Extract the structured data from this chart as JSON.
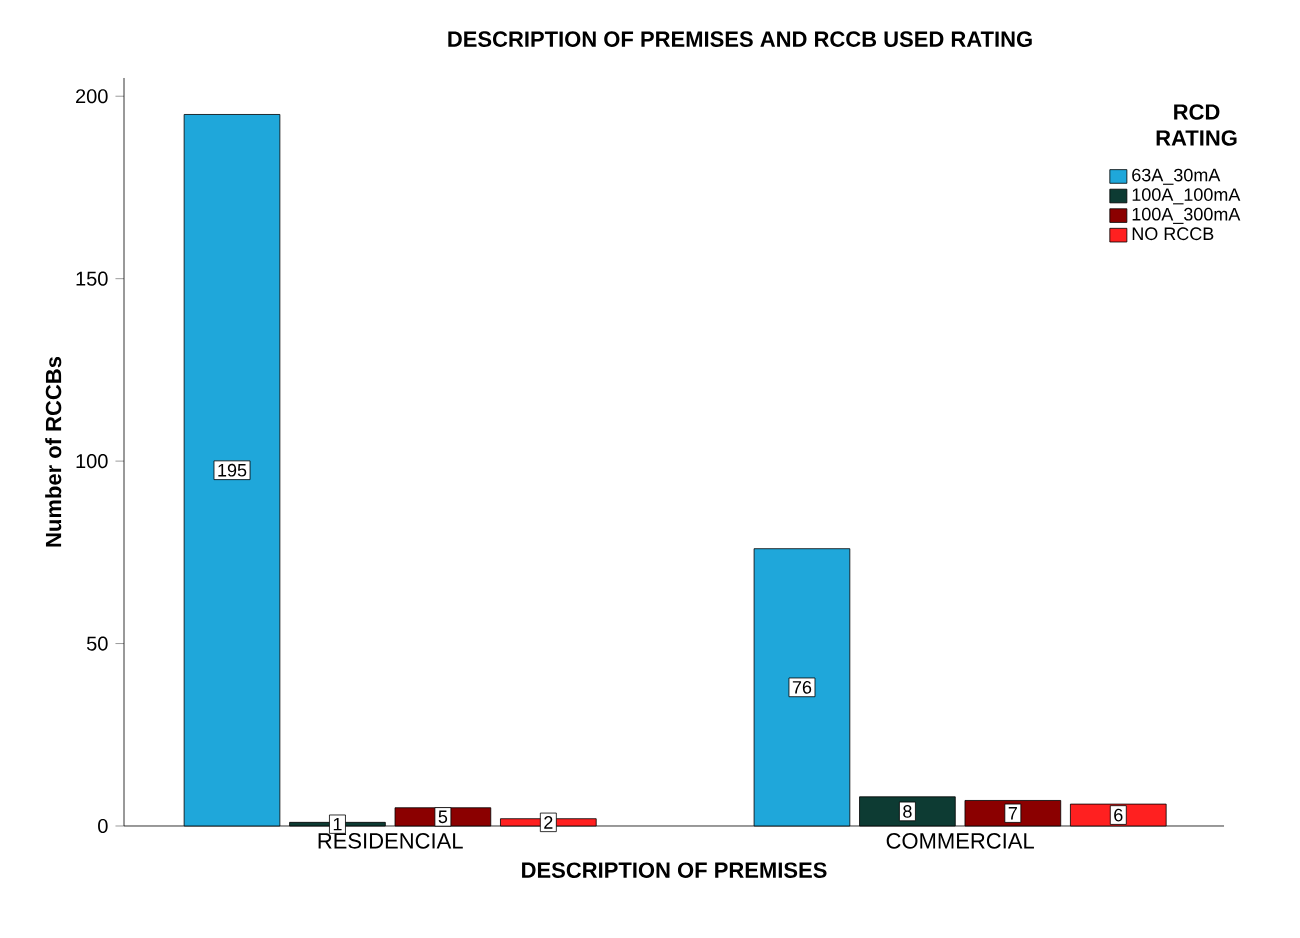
{
  "chart_data": {
    "type": "bar",
    "title": "DESCRIPTION OF PREMISES AND RCCB USED RATING",
    "xlabel": "DESCRIPTION OF PREMISES",
    "ylabel": "Number of RCCBs",
    "legend_title": "RCD RATING",
    "categories": [
      "RESIDENCIAL",
      "COMMERCIAL"
    ],
    "series": [
      {
        "name": "63A_30mA",
        "color": "#1fa7da",
        "values": [
          195,
          76
        ]
      },
      {
        "name": "100A_100mA",
        "color": "#0d3b33",
        "values": [
          1,
          8
        ]
      },
      {
        "name": "100A_300mA",
        "color": "#8b0000",
        "values": [
          5,
          7
        ]
      },
      {
        "name": "NO RCCB",
        "color": "#ff2020",
        "values": [
          2,
          6
        ]
      }
    ],
    "ylim": [
      0,
      205
    ],
    "yticks": [
      0,
      50,
      100,
      150,
      200
    ],
    "data_labels": true,
    "legend": "top right",
    "grid": false
  }
}
